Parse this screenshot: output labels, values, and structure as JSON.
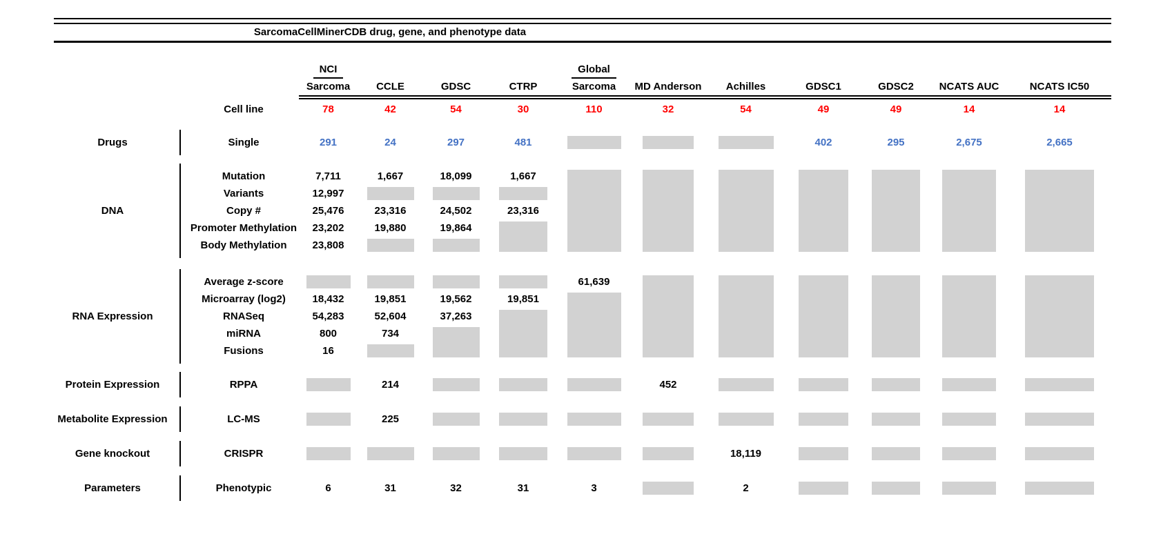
{
  "colors": {
    "red": "#FF0000",
    "blue": "#4472C4",
    "gray": "#D2D2D2",
    "text": "#000000"
  },
  "chart_data": {
    "type": "table",
    "title": "SarcomaCellMinerCDB drug, gene, and phenotype data",
    "no_data_marker": "gray block",
    "columns": [
      {
        "top": "NCI",
        "label": "Sarcoma"
      },
      {
        "top": "",
        "label": "CCLE"
      },
      {
        "top": "",
        "label": "GDSC"
      },
      {
        "top": "",
        "label": "CTRP"
      },
      {
        "top": "Global",
        "label": "Sarcoma"
      },
      {
        "top": "",
        "label": "MD Anderson"
      },
      {
        "top": "",
        "label": "Achilles"
      },
      {
        "top": "",
        "label": "GDSC1"
      },
      {
        "top": "",
        "label": "GDSC2"
      },
      {
        "top": "",
        "label": "NCATS AUC"
      },
      {
        "top": "",
        "label": "NCATS IC50"
      }
    ],
    "cell_line_row": {
      "label": "Cell line",
      "values": [
        "78",
        "42",
        "54",
        "30",
        "110",
        "32",
        "54",
        "49",
        "49",
        "14",
        "14"
      ]
    },
    "sections": [
      {
        "category": "Drugs",
        "rows": [
          {
            "label": "Single",
            "color": "blue",
            "cells": [
              "291",
              "24",
              "297",
              "481",
              {
                "gray": 1
              },
              {
                "gray": 1
              },
              {
                "gray": 1
              },
              "402",
              "295",
              "2,675",
              "2,665"
            ]
          }
        ]
      },
      {
        "category": "DNA",
        "rows": [
          {
            "label": "Mutation",
            "cells": [
              "7,711",
              "1,667",
              "18,099",
              "1,667",
              {
                "gray": 5
              },
              {
                "gray": 5
              },
              {
                "gray": 5
              },
              {
                "gray": 5
              },
              {
                "gray": 5
              },
              {
                "gray": 5
              },
              {
                "gray": 5
              }
            ]
          },
          {
            "label": "Variants",
            "cells": [
              "12,997",
              {
                "gray": 1
              },
              {
                "gray": 1
              },
              {
                "gray": 1
              },
              "",
              "",
              "",
              "",
              "",
              "",
              ""
            ]
          },
          {
            "label": "Copy #",
            "cells": [
              "25,476",
              "23,316",
              "24,502",
              "23,316",
              "",
              "",
              "",
              "",
              "",
              "",
              ""
            ]
          },
          {
            "label": "Promoter Methylation",
            "cells": [
              "23,202",
              "19,880",
              "19,864",
              {
                "gray": 2
              },
              "",
              "",
              "",
              "",
              "",
              "",
              ""
            ]
          },
          {
            "label": "Body Methylation",
            "cells": [
              "23,808",
              {
                "gray": 1
              },
              {
                "gray": 1
              },
              "",
              "",
              "",
              "",
              "",
              "",
              "",
              ""
            ]
          }
        ]
      },
      {
        "category": "RNA Expression",
        "rows": [
          {
            "label": "Average z-score",
            "cells": [
              {
                "gray": 1
              },
              {
                "gray": 1
              },
              {
                "gray": 1
              },
              {
                "gray": 1
              },
              "61,639",
              {
                "gray": 5
              },
              {
                "gray": 5
              },
              {
                "gray": 5
              },
              {
                "gray": 5
              },
              {
                "gray": 5
              },
              {
                "gray": 5
              }
            ]
          },
          {
            "label": "Microarray (log2)",
            "cells": [
              "18,432",
              "19,851",
              "19,562",
              "19,851",
              {
                "gray": 4
              },
              "",
              "",
              "",
              "",
              "",
              ""
            ]
          },
          {
            "label": "RNASeq",
            "cells": [
              "54,283",
              "52,604",
              "37,263",
              {
                "gray": 3
              },
              "",
              "",
              "",
              "",
              "",
              "",
              ""
            ]
          },
          {
            "label": "miRNA",
            "cells": [
              "800",
              "734",
              {
                "gray": 2
              },
              "",
              "",
              "",
              "",
              "",
              "",
              "",
              ""
            ]
          },
          {
            "label": "Fusions",
            "cells": [
              "16",
              {
                "gray": 1
              },
              "",
              "",
              "",
              "",
              "",
              "",
              "",
              "",
              ""
            ]
          }
        ]
      },
      {
        "category": "Protein Expression",
        "rows": [
          {
            "label": "RPPA",
            "cells": [
              {
                "gray": 1
              },
              "214",
              {
                "gray": 1
              },
              {
                "gray": 1
              },
              {
                "gray": 1
              },
              "452",
              {
                "gray": 1
              },
              {
                "gray": 1
              },
              {
                "gray": 1
              },
              {
                "gray": 1
              },
              {
                "gray": 1
              }
            ]
          }
        ]
      },
      {
        "category": "Metabolite Expression",
        "rows": [
          {
            "label": "LC-MS",
            "cells": [
              {
                "gray": 1
              },
              "225",
              {
                "gray": 1
              },
              {
                "gray": 1
              },
              {
                "gray": 1
              },
              {
                "gray": 1
              },
              {
                "gray": 1
              },
              {
                "gray": 1
              },
              {
                "gray": 1
              },
              {
                "gray": 1
              },
              {
                "gray": 1
              }
            ]
          }
        ]
      },
      {
        "category": "Gene knockout",
        "rows": [
          {
            "label": "CRISPR",
            "cells": [
              {
                "gray": 1
              },
              {
                "gray": 1
              },
              {
                "gray": 1
              },
              {
                "gray": 1
              },
              {
                "gray": 1
              },
              {
                "gray": 1
              },
              "18,119",
              {
                "gray": 1
              },
              {
                "gray": 1
              },
              {
                "gray": 1
              },
              {
                "gray": 1
              }
            ]
          }
        ]
      },
      {
        "category": "Parameters",
        "rows": [
          {
            "label": "Phenotypic",
            "cells": [
              "6",
              "31",
              "32",
              "31",
              "3",
              {
                "gray": 1
              },
              "2",
              {
                "gray": 1
              },
              {
                "gray": 1
              },
              {
                "gray": 1
              },
              {
                "gray": 1
              }
            ]
          }
        ]
      }
    ]
  }
}
